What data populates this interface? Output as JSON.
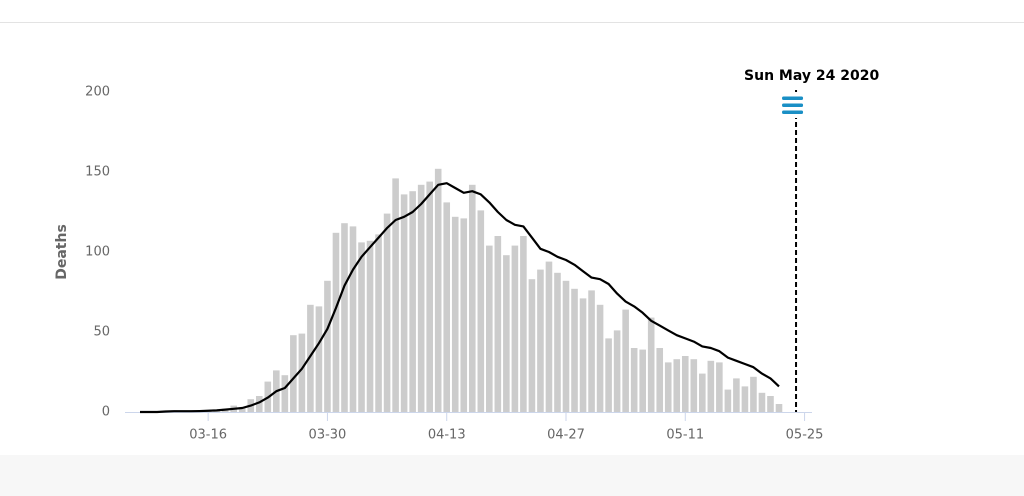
{
  "chart_data": {
    "type": "bar-line",
    "y_axis_title": "Deaths",
    "categories": [
      null,
      null,
      null,
      null,
      null,
      null,
      null,
      null,
      "03-16",
      null,
      null,
      null,
      null,
      null,
      null,
      null,
      null,
      null,
      null,
      null,
      null,
      null,
      "03-30",
      null,
      null,
      null,
      null,
      null,
      null,
      null,
      null,
      null,
      null,
      null,
      null,
      null,
      "04-13",
      null,
      null,
      null,
      null,
      null,
      null,
      null,
      null,
      null,
      null,
      null,
      null,
      null,
      "04-27",
      null,
      null,
      null,
      null,
      null,
      null,
      null,
      null,
      null,
      null,
      null,
      null,
      null,
      "05-11",
      null,
      null,
      null,
      null,
      null,
      null,
      null,
      null,
      null,
      null,
      null,
      null,
      null,
      "05-25"
    ],
    "series": [
      {
        "kind": "bar",
        "color": "#cccccc",
        "values": [
          0,
          0,
          0,
          0,
          1,
          0,
          0,
          1,
          1,
          1,
          2,
          4,
          3,
          8,
          10,
          19,
          26,
          23,
          48,
          49,
          67,
          66,
          82,
          112,
          118,
          116,
          106,
          107,
          111,
          124,
          146,
          136,
          138,
          142,
          144,
          152,
          131,
          122,
          121,
          142,
          126,
          104,
          110,
          98,
          104,
          110,
          83,
          89,
          94,
          87,
          82,
          77,
          71,
          76,
          67,
          46,
          51,
          64,
          40,
          39,
          59,
          40,
          31,
          33,
          35,
          33,
          24,
          32,
          31,
          14,
          21,
          16,
          22,
          12,
          10,
          5,
          null,
          null,
          null
        ]
      },
      {
        "kind": "line",
        "color": "#000000",
        "values": [
          0,
          0,
          0,
          0.3,
          0.5,
          0.5,
          0.5,
          0.6,
          0.8,
          1,
          1.5,
          2,
          2.5,
          4,
          6,
          9,
          13,
          15,
          21,
          27,
          35,
          43,
          52,
          65,
          79,
          89,
          97,
          103,
          109,
          115,
          120,
          122,
          125,
          130,
          136,
          142,
          143,
          140,
          137,
          138,
          136,
          131,
          125,
          120,
          117,
          116,
          109,
          102,
          100,
          97,
          95,
          92,
          88,
          84,
          83,
          80,
          74,
          69,
          66,
          62,
          57,
          54,
          51,
          48,
          46,
          44,
          41,
          40,
          38,
          34,
          32,
          30,
          28,
          24,
          21,
          16,
          null,
          null,
          null
        ]
      }
    ],
    "ylim": [
      0,
      200
    ],
    "yticks": [
      0,
      50,
      100,
      150,
      200
    ],
    "annotation": {
      "text": "Sun May 24 2020",
      "category_index": 77
    }
  }
}
